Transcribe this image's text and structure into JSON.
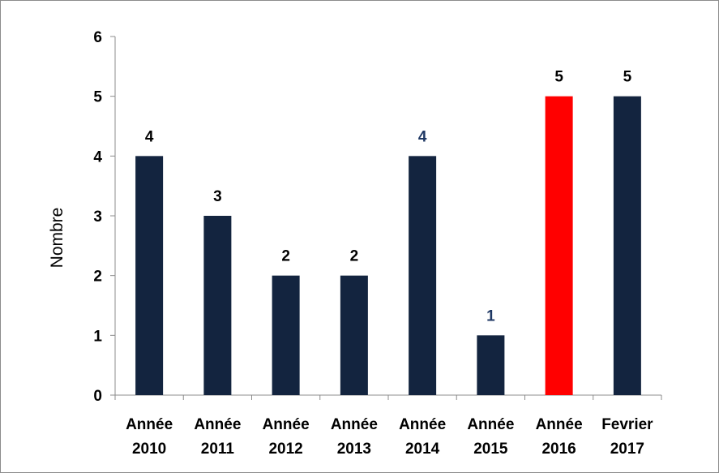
{
  "chart_data": {
    "type": "bar",
    "title": "",
    "xlabel": "",
    "ylabel": "Nombre",
    "ylim": [
      0,
      6
    ],
    "yticks": [
      0,
      1,
      2,
      3,
      4,
      5,
      6
    ],
    "grid": false,
    "legend": "none",
    "categories": [
      [
        "Année",
        "2010"
      ],
      [
        "Année",
        "2011"
      ],
      [
        "Année",
        "2012"
      ],
      [
        "Année",
        "2013"
      ],
      [
        "Année",
        "2014"
      ],
      [
        "Année",
        "2015"
      ],
      [
        "Année",
        "2016"
      ],
      [
        "Fevrier",
        "2017"
      ]
    ],
    "values": [
      4,
      3,
      2,
      2,
      4,
      1,
      5,
      5
    ],
    "bar_colors": [
      "#13243f",
      "#13243f",
      "#13243f",
      "#13243f",
      "#13243f",
      "#13243f",
      "#ff0000",
      "#13243f"
    ],
    "data_label_colors": [
      "#000000",
      "#000000",
      "#000000",
      "#000000",
      "#1f3864",
      "#1f3864",
      "#000000",
      "#000000"
    ],
    "axis_color": "#8c8c8c"
  }
}
